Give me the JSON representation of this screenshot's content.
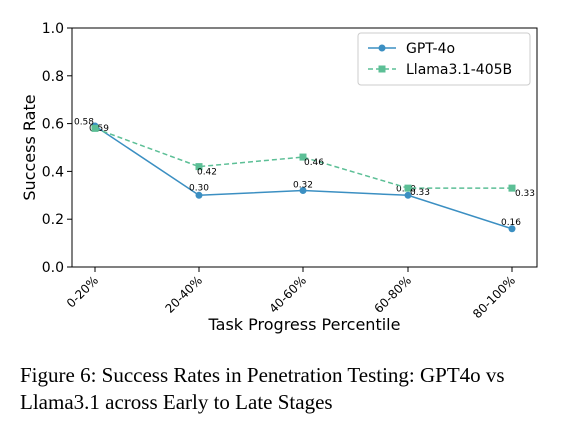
{
  "chart_data": {
    "type": "line",
    "categories": [
      "0-20%",
      "20-40%",
      "40-60%",
      "60-80%",
      "80-100%"
    ],
    "series": [
      {
        "name": "GPT-4o",
        "values": [
          0.59,
          0.3,
          0.32,
          0.3,
          0.16
        ],
        "labels": [
          "0.59",
          "0.30",
          "0.32",
          "0.30",
          "0.16"
        ],
        "color": "#3b8fc2",
        "style": "solid",
        "marker": "circle"
      },
      {
        "name": "Llama3.1-405B",
        "values": [
          0.58,
          0.42,
          0.46,
          0.33,
          0.33
        ],
        "labels": [
          "0.58",
          "0.42",
          "0.46",
          "0.33",
          "0.33"
        ],
        "color": "#5cbf96",
        "style": "dashed",
        "marker": "square"
      }
    ],
    "xlabel": "Task Progress Percentile",
    "ylabel": "Success Rate",
    "ylim": [
      0.0,
      1.0
    ],
    "yticks": [
      "0.0",
      "0.2",
      "0.4",
      "0.6",
      "0.8",
      "1.0"
    ],
    "grid": false,
    "legend_position": "top-right"
  },
  "caption": "Figure 6: Success Rates in Penetration Testing: GPT4o vs Llama3.1 across Early to Late Stages"
}
